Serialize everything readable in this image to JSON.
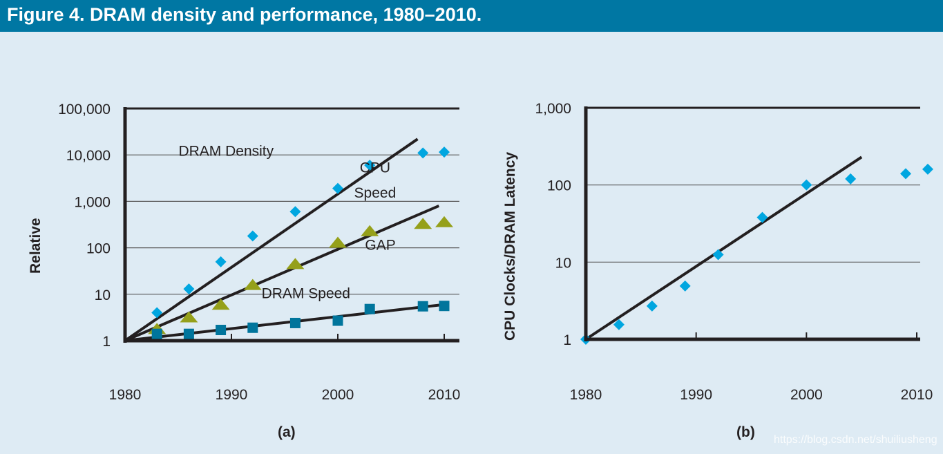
{
  "header": {
    "title": "Figure 4. DRAM density and performance, 1980–2010."
  },
  "watermark": "https://blog.csdn.net/shuiliusheng",
  "colors": {
    "header_bg": "#0077a3",
    "background": "#deebf4",
    "cpu": "#00a6e0",
    "gap": "#95a01a",
    "dram": "#00759c",
    "line": "#231f20",
    "grid": "#5a5a5a"
  },
  "chart_data": [
    {
      "type": "scatter",
      "panel_label": "(a)",
      "title": "",
      "xlabel": "",
      "ylabel": "Relative",
      "yscale": "log",
      "xlim": [
        1980,
        2010
      ],
      "ylim": [
        1,
        100000
      ],
      "x_ticks": [
        1980,
        1990,
        2000,
        2010
      ],
      "x_tick_labels": [
        "1980",
        "1990",
        "2000",
        "2010"
      ],
      "y_ticks": [
        1,
        10,
        100,
        1000,
        10000,
        100000
      ],
      "y_tick_labels": [
        "1",
        "10",
        "100",
        "1,000",
        "10,000",
        "100,000"
      ],
      "grid": "horizontal",
      "annotations": [
        {
          "text": "DRAM Density",
          "x": 1989.5,
          "y": 9500
        },
        {
          "text": "CPU",
          "x": 2003.5,
          "y": 4200
        },
        {
          "text": "Speed",
          "x": 2003.5,
          "y": 1200
        },
        {
          "text": "GAP",
          "x": 2004,
          "y": 90
        },
        {
          "text": "DRAM Speed",
          "x": 1997,
          "y": 8.2
        }
      ],
      "series": [
        {
          "name": "CPU Speed",
          "marker": "diamond",
          "color": "#00a6e0",
          "x": [
            1983,
            1986,
            1989,
            1992,
            1996,
            2000,
            2003,
            2008,
            2010
          ],
          "y": [
            4,
            13,
            50,
            180,
            600,
            1900,
            6000,
            11000,
            11500
          ]
        },
        {
          "name": "GAP",
          "marker": "triangle",
          "color": "#95a01a",
          "x": [
            1983,
            1986,
            1989,
            1992,
            1996,
            2000,
            2003,
            2008,
            2010
          ],
          "y": [
            1.8,
            3.2,
            6,
            16,
            45,
            130,
            230,
            330,
            360
          ]
        },
        {
          "name": "DRAM Speed",
          "marker": "square",
          "color": "#00759c",
          "x": [
            1983,
            1986,
            1989,
            1992,
            1996,
            2000,
            2003,
            2008,
            2010
          ],
          "y": [
            1.4,
            1.4,
            1.7,
            1.9,
            2.4,
            2.7,
            4.8,
            5.5,
            5.6
          ]
        }
      ],
      "trend_lines": [
        {
          "name": "CPU trend",
          "x": [
            1980,
            2007.5
          ],
          "y": [
            1,
            22000
          ]
        },
        {
          "name": "GAP trend",
          "x": [
            1980,
            2009.5
          ],
          "y": [
            1,
            800
          ]
        },
        {
          "name": "DRAM trend",
          "x": [
            1980,
            2010
          ],
          "y": [
            1,
            6
          ]
        }
      ]
    },
    {
      "type": "scatter",
      "panel_label": "(b)",
      "title": "",
      "xlabel": "",
      "ylabel": "CPU Clocks/DRAM Latency",
      "yscale": "log",
      "xlim": [
        1980,
        2010
      ],
      "ylim": [
        1,
        1000
      ],
      "x_ticks": [
        1980,
        1990,
        2000,
        2010
      ],
      "x_tick_labels": [
        "1980",
        "1990",
        "2000",
        "2010"
      ],
      "y_ticks": [
        1,
        10,
        100,
        1000
      ],
      "y_tick_labels": [
        "1",
        "10",
        "100",
        "1,000"
      ],
      "grid": "horizontal",
      "series": [
        {
          "name": "CPU Clocks/DRAM Latency",
          "marker": "diamond",
          "color": "#00a6e0",
          "x": [
            1980,
            1983,
            1986,
            1989,
            1992,
            1996,
            2000,
            2004,
            2009,
            2011
          ],
          "y": [
            1,
            1.55,
            2.7,
            4.9,
            12.5,
            38,
            100,
            120,
            140,
            160
          ]
        }
      ],
      "trend_lines": [
        {
          "name": "latency trend",
          "x": [
            1980,
            2005
          ],
          "y": [
            1,
            230
          ]
        }
      ]
    }
  ]
}
